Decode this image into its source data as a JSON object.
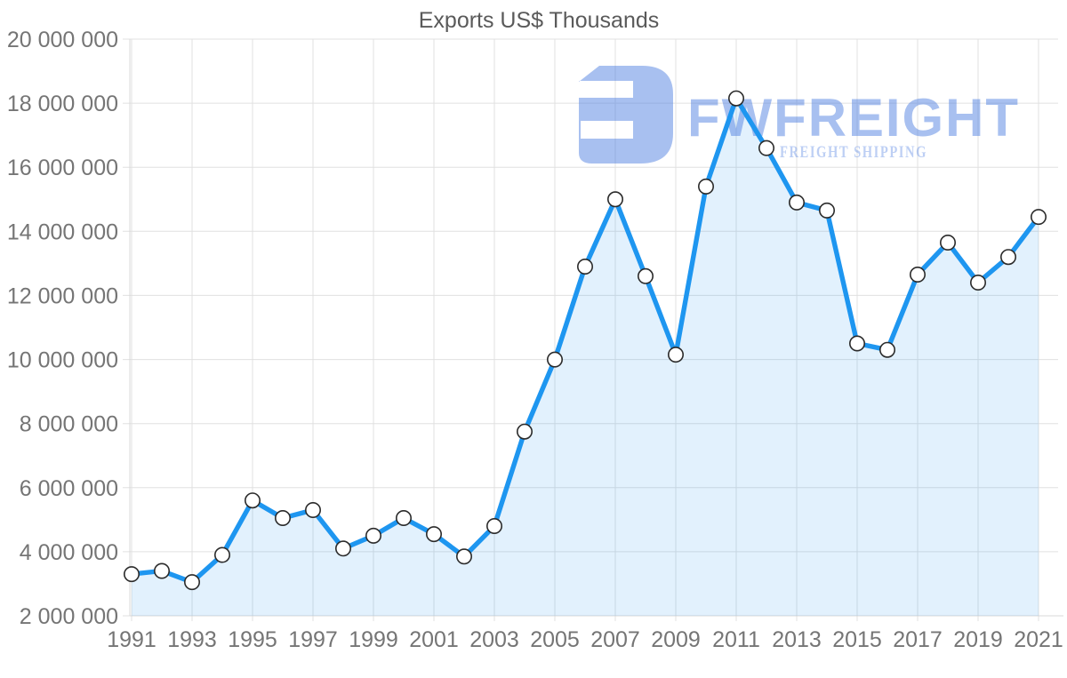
{
  "title": "Exports US$ Thousands",
  "watermark": {
    "brand": "FWFREIGHT",
    "tagline": "FREIGHT SHIPPING",
    "icon_fill": "rgba(82,129,226,0.50)",
    "brand_fill": "rgba(82,129,226,0.50)",
    "tagline_fill": "rgba(82,129,226,0.38)"
  },
  "colors": {
    "line": "#1e96f0",
    "area_fill": "rgba(30,150,240,0.13)",
    "marker_fill": "#ffffff",
    "marker_stroke": "#2b2b2b",
    "gridline": "#e0e0e0",
    "axis_line": "#d8d8d8",
    "axis_label": "#757575",
    "title_color": "#5a5a5a"
  },
  "chart_data": {
    "type": "line",
    "title": "Exports US$ Thousands",
    "xlabel": "",
    "ylabel": "",
    "grid": true,
    "legend": "none",
    "area_fill": true,
    "marker": "white-circle",
    "ylim": [
      2000000,
      20000000
    ],
    "ytick_step": 2000000,
    "x": [
      1991,
      1992,
      1993,
      1994,
      1995,
      1996,
      1997,
      1998,
      1999,
      2000,
      2001,
      2002,
      2003,
      2004,
      2005,
      2006,
      2007,
      2008,
      2009,
      2010,
      2011,
      2012,
      2013,
      2014,
      2015,
      2016,
      2017,
      2018,
      2019,
      2020,
      2021
    ],
    "series": [
      {
        "name": "Exports US$ Thousands",
        "values": [
          3300000,
          3400000,
          3050000,
          3900000,
          5600000,
          5050000,
          5300000,
          4100000,
          4500000,
          5050000,
          4550000,
          3850000,
          4800000,
          7750000,
          10000000,
          12900000,
          15000000,
          12600000,
          10150000,
          15400000,
          18150000,
          16600000,
          14900000,
          14650000,
          10500000,
          10300000,
          12650000,
          13650000,
          12400000,
          13200000,
          14450000
        ]
      }
    ],
    "y_ticks": [
      {
        "value": 2000000,
        "label": "2 000 000"
      },
      {
        "value": 4000000,
        "label": "4 000 000"
      },
      {
        "value": 6000000,
        "label": "6 000 000"
      },
      {
        "value": 8000000,
        "label": "8 000 000"
      },
      {
        "value": 10000000,
        "label": "10 000 000"
      },
      {
        "value": 12000000,
        "label": "12 000 000"
      },
      {
        "value": 14000000,
        "label": "14 000 000"
      },
      {
        "value": 16000000,
        "label": "16 000 000"
      },
      {
        "value": 18000000,
        "label": "18 000 000"
      },
      {
        "value": 20000000,
        "label": "20 000 000"
      }
    ],
    "x_ticks": [
      {
        "value": 1991,
        "label": "1991"
      },
      {
        "value": 1993,
        "label": "1993"
      },
      {
        "value": 1995,
        "label": "1995"
      },
      {
        "value": 1997,
        "label": "1997"
      },
      {
        "value": 1999,
        "label": "1999"
      },
      {
        "value": 2001,
        "label": "2001"
      },
      {
        "value": 2003,
        "label": "2003"
      },
      {
        "value": 2005,
        "label": "2005"
      },
      {
        "value": 2007,
        "label": "2007"
      },
      {
        "value": 2009,
        "label": "2009"
      },
      {
        "value": 2011,
        "label": "2011"
      },
      {
        "value": 2013,
        "label": "2013"
      },
      {
        "value": 2015,
        "label": "2015"
      },
      {
        "value": 2017,
        "label": "2017"
      },
      {
        "value": 2019,
        "label": "2019"
      },
      {
        "value": 2021,
        "label": "2021"
      }
    ]
  }
}
